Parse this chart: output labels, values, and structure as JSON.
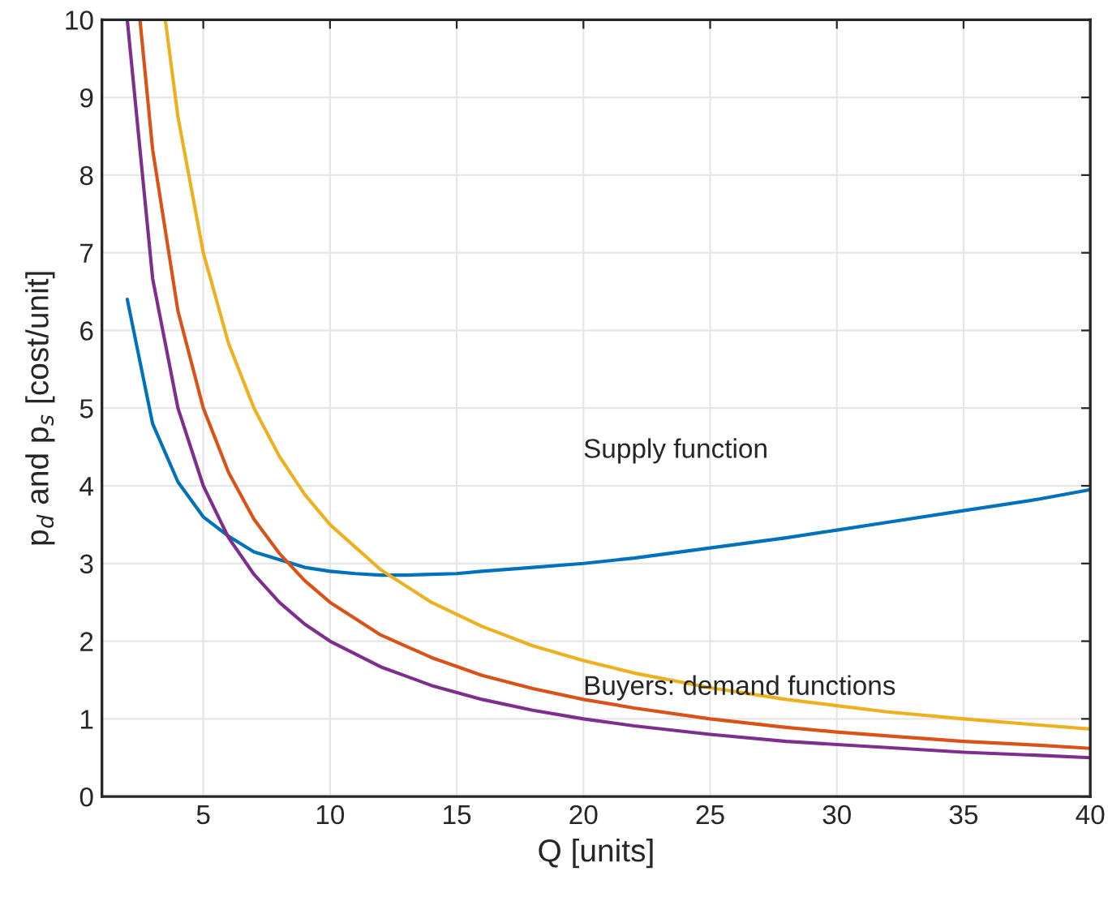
{
  "chart_data": {
    "type": "line",
    "xlabel": "Q [units]",
    "ylabel": "p$_{d}$ and p$_{s}$ [cost/unit]",
    "xlim": [
      1,
      40
    ],
    "ylim": [
      0,
      10
    ],
    "xticks": [
      5,
      10,
      15,
      20,
      25,
      30,
      35,
      40
    ],
    "yticks": [
      0,
      1,
      2,
      3,
      4,
      5,
      6,
      7,
      8,
      9,
      10
    ],
    "grid": true,
    "legend": false,
    "series": [
      {
        "color": "#0072bd",
        "x": [
          2,
          3,
          4,
          5,
          6,
          7,
          8,
          9,
          10,
          11,
          12,
          13,
          14,
          15,
          16,
          18,
          20,
          22,
          25,
          28,
          30,
          32,
          35,
          38,
          40
        ],
        "values": [
          6.4,
          4.8,
          4.05,
          3.6,
          3.35,
          3.15,
          3.05,
          2.95,
          2.9,
          2.87,
          2.85,
          2.85,
          2.86,
          2.87,
          2.9,
          2.95,
          3.0,
          3.07,
          3.2,
          3.33,
          3.43,
          3.53,
          3.68,
          3.83,
          3.95
        ]
      },
      {
        "color": "#edb120",
        "x": [
          3.5,
          4,
          5,
          6,
          7,
          8,
          9,
          10,
          12,
          14,
          16,
          18,
          20,
          22,
          25,
          28,
          30,
          32,
          35,
          38,
          40
        ],
        "values": [
          10,
          8.75,
          7.0,
          5.83,
          5.0,
          4.38,
          3.89,
          3.5,
          2.92,
          2.5,
          2.19,
          1.94,
          1.75,
          1.59,
          1.4,
          1.25,
          1.17,
          1.09,
          1.0,
          0.92,
          0.87
        ]
      },
      {
        "color": "#d95319",
        "x": [
          2.5,
          3,
          4,
          5,
          6,
          7,
          8,
          9,
          10,
          12,
          14,
          16,
          18,
          20,
          22,
          25,
          28,
          30,
          32,
          35,
          38,
          40
        ],
        "values": [
          10,
          8.33,
          6.25,
          5.0,
          4.17,
          3.57,
          3.13,
          2.78,
          2.5,
          2.08,
          1.79,
          1.56,
          1.39,
          1.25,
          1.14,
          1.0,
          0.89,
          0.83,
          0.78,
          0.71,
          0.66,
          0.62
        ]
      },
      {
        "color": "#7e2f8e",
        "x": [
          2,
          3,
          4,
          5,
          6,
          7,
          8,
          9,
          10,
          12,
          14,
          16,
          18,
          20,
          22,
          25,
          28,
          30,
          32,
          35,
          38,
          40
        ],
        "values": [
          10,
          6.67,
          5.0,
          4.0,
          3.33,
          2.86,
          2.5,
          2.22,
          2.0,
          1.67,
          1.43,
          1.25,
          1.11,
          1.0,
          0.91,
          0.8,
          0.71,
          0.67,
          0.63,
          0.57,
          0.53,
          0.5
        ]
      }
    ],
    "annotations": [
      "Supply function",
      "Buyers: demand functions"
    ]
  }
}
